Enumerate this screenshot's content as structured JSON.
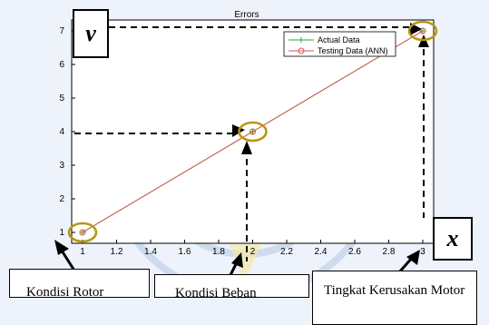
{
  "chart_data": {
    "type": "line",
    "title": "Errors",
    "x_ticks": [
      "1",
      "1.2",
      "1.4",
      "1.6",
      "1.8",
      "2",
      "2.2",
      "2.4",
      "2.6",
      "2.8",
      "3"
    ],
    "y_ticks": [
      "1",
      "2",
      "3",
      "4",
      "5",
      "6",
      "7"
    ],
    "xlim": [
      1,
      3
    ],
    "ylim": [
      1,
      7
    ],
    "series": [
      {
        "name": "Actual Data",
        "x": [
          1,
          2,
          3
        ],
        "y": [
          1,
          4,
          7
        ],
        "color": "#2ea82e",
        "marker": "plus"
      },
      {
        "name": "Testing Data (ANN)",
        "x": [
          1,
          2,
          3
        ],
        "y": [
          1,
          4,
          7
        ],
        "color": "#d85454",
        "marker": "circle"
      }
    ],
    "legend_position": "top-right",
    "grid": false
  },
  "highlight_color": "#b8960c",
  "annotations": {
    "var_y": "v",
    "var_x": "x",
    "callout_rotor": "Kondisi Rotor",
    "callout_beban": "Kondisi Beban",
    "callout_kerusakan": "Tingkat Kerusakan Motor"
  }
}
